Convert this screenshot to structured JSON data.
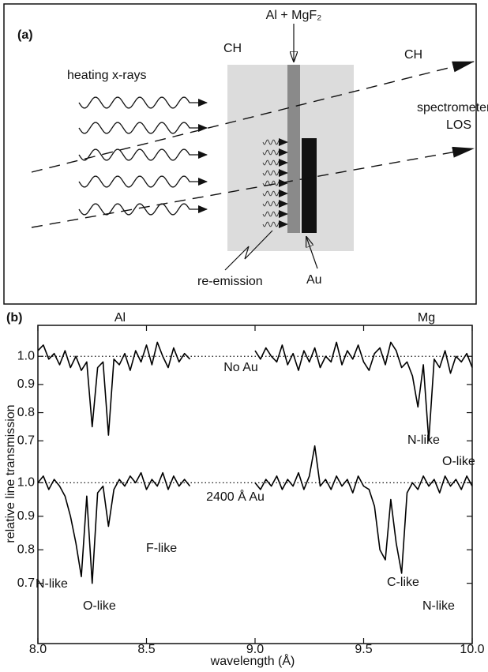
{
  "panel_a": {
    "label": "(a)",
    "heating": "heating x-rays",
    "ch_left": "CH",
    "ch_right": "CH",
    "layer": "Al + MgF₂",
    "los": [
      "spectrometer",
      "LOS"
    ],
    "re_emission": "re-emission",
    "au": "Au"
  },
  "chart_data": {
    "type": "line",
    "panel_label": "(b)",
    "element_labels": [
      "Al",
      "Mg"
    ],
    "xlabel": "wavelength (Å)",
    "ylabel": "relative line transmission",
    "xlim": [
      8.0,
      10.0
    ],
    "xticks": [
      {
        "value": 8,
        "label": "8.0"
      },
      8.5,
      {
        "value": 9,
        "label": "9.0"
      },
      9.5,
      {
        "value": 10,
        "label": "10.0"
      }
    ],
    "ylim": [
      -0.02,
      1.11
    ],
    "yticks": [
      {
        "value": 1,
        "label": "1.0"
      },
      0.9,
      0.8,
      0.7
    ],
    "y2lim": [
      0.52,
      1.47
    ],
    "y2ticks": [
      {
        "value": 1,
        "label": "1.0"
      },
      0.9,
      0.8,
      0.7
    ],
    "x": [
      8.0,
      8.025,
      8.05,
      8.075,
      8.1,
      8.125,
      8.15,
      8.175,
      8.2,
      8.225,
      8.25,
      8.275,
      8.3,
      8.325,
      8.35,
      8.375,
      8.4,
      8.425,
      8.45,
      8.475,
      8.5,
      8.525,
      8.55,
      8.575,
      8.6,
      8.625,
      8.65,
      8.675,
      8.7,
      8.725,
      8.75,
      8.775,
      8.8,
      8.825,
      8.85,
      8.875,
      8.9,
      8.925,
      8.95,
      8.975,
      9.0,
      9.025,
      9.05,
      9.075,
      9.1,
      9.125,
      9.15,
      9.175,
      9.2,
      9.225,
      9.25,
      9.275,
      9.3,
      9.325,
      9.35,
      9.375,
      9.4,
      9.425,
      9.45,
      9.475,
      9.5,
      9.525,
      9.55,
      9.575,
      9.6,
      9.625,
      9.65,
      9.675,
      9.7,
      9.725,
      9.75,
      9.775,
      9.8,
      9.825,
      9.85,
      9.875,
      9.9,
      9.925,
      9.95,
      9.975,
      10.0
    ],
    "series": [
      {
        "name": "No Au",
        "color": "#000000",
        "annotations": [
          "N-like",
          "O-like"
        ],
        "values": [
          1.02,
          1.04,
          0.99,
          1.01,
          0.97,
          1.02,
          0.96,
          1.0,
          0.95,
          0.98,
          0.75,
          0.96,
          0.98,
          0.72,
          0.99,
          0.97,
          1.01,
          0.95,
          1.02,
          0.98,
          1.04,
          0.97,
          1.05,
          1.0,
          0.96,
          1.03,
          0.98,
          1.01,
          0.99,
          null,
          null,
          null,
          null,
          null,
          null,
          null,
          null,
          null,
          null,
          null,
          1.02,
          0.99,
          1.03,
          1.0,
          0.98,
          1.04,
          0.97,
          1.01,
          0.95,
          1.02,
          0.98,
          1.03,
          0.96,
          1.0,
          0.98,
          1.05,
          0.97,
          1.02,
          0.99,
          1.04,
          0.98,
          0.95,
          1.01,
          1.03,
          0.97,
          1.05,
          1.02,
          0.96,
          0.98,
          0.93,
          0.82,
          0.97,
          0.7,
          0.99,
          0.96,
          1.02,
          0.94,
          1.0,
          0.98,
          1.01,
          0.96
        ]
      },
      {
        "name": "2400 Å Au",
        "color": "#000000",
        "axis": "y2",
        "annotations": [
          "F-like",
          "N-like",
          "O-like",
          "C-like",
          "N-like"
        ],
        "values": [
          1.0,
          1.02,
          0.98,
          1.01,
          0.99,
          0.96,
          0.9,
          0.82,
          0.72,
          0.96,
          0.7,
          0.97,
          0.99,
          0.87,
          0.98,
          1.01,
          0.99,
          1.02,
          1.0,
          1.03,
          0.98,
          1.01,
          0.99,
          1.03,
          0.98,
          1.02,
          0.99,
          1.01,
          0.99,
          null,
          null,
          null,
          null,
          null,
          null,
          null,
          null,
          null,
          null,
          null,
          1.0,
          0.98,
          1.01,
          0.99,
          1.02,
          0.98,
          1.01,
          0.99,
          1.03,
          0.98,
          1.02,
          1.11,
          0.99,
          1.01,
          0.98,
          1.02,
          0.99,
          1.01,
          0.97,
          1.02,
          0.99,
          0.98,
          0.93,
          0.8,
          0.77,
          0.95,
          0.82,
          0.73,
          0.97,
          1.0,
          0.98,
          1.02,
          0.99,
          1.01,
          0.97,
          1.02,
          0.99,
          1.01,
          0.98,
          1.02,
          0.99
        ]
      }
    ]
  }
}
